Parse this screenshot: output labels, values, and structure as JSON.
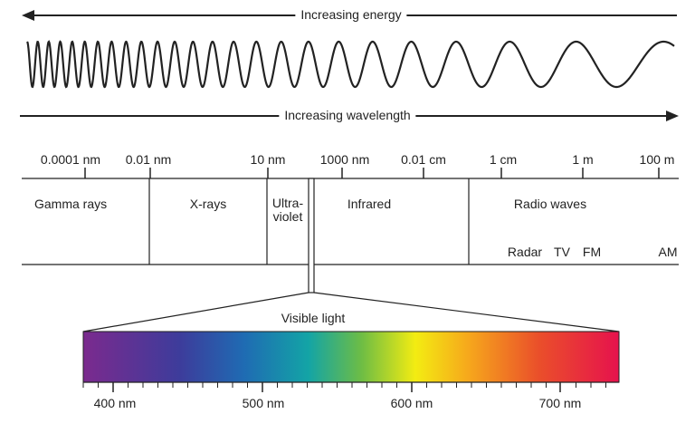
{
  "energy_label": "Increasing energy",
  "wavelength_label": "Increasing wavelength",
  "scale_ticks": [
    "0.0001 nm",
    "0.01 nm",
    "10 nm",
    "1000 nm",
    "0.01 cm",
    "1 cm",
    "1 m",
    "100 m"
  ],
  "regions": {
    "gamma": "Gamma rays",
    "xray": "X-rays",
    "uv_line1": "Ultra-",
    "uv_line2": "violet",
    "infrared": "Infrared",
    "radio": "Radio waves"
  },
  "radio_bands": [
    "Radar",
    "TV",
    "FM",
    "AM"
  ],
  "visible": {
    "label": "Visible light",
    "ticks": [
      "400 nm",
      "500 nm",
      "600 nm",
      "700 nm"
    ]
  },
  "spectrum_colors": [
    "#7b2a8e",
    "#3d3c9b",
    "#1f6bb3",
    "#13a4a6",
    "#6ebd44",
    "#f3ec12",
    "#f6a71c",
    "#ea4f2a",
    "#e6124d"
  ]
}
